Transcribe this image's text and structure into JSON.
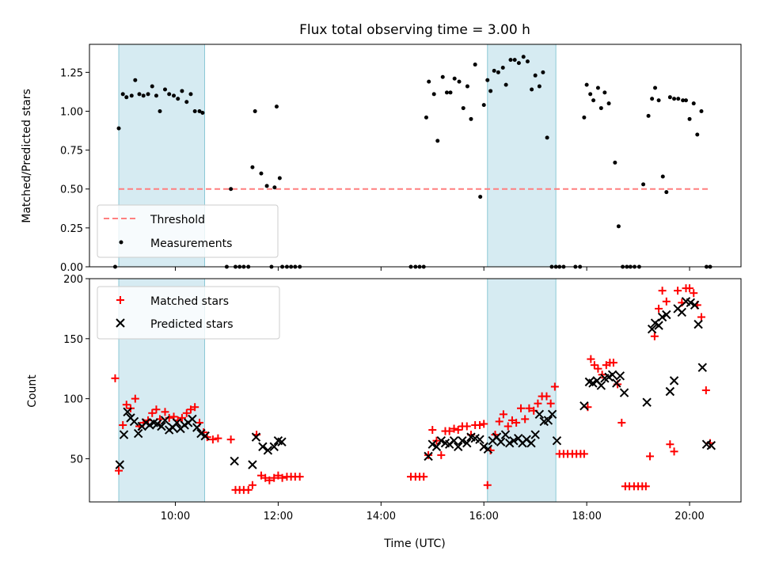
{
  "chart_data": [
    {
      "type": "scatter",
      "title": "Flux total observing time = 3.00 h",
      "ylabel": "Matched/Predicted stars",
      "xlabel": "",
      "xlim": [
        8.33,
        21.0
      ],
      "ylim": [
        0,
        1.43
      ],
      "yticks": [
        "0.00",
        "0.25",
        "0.50",
        "0.75",
        "1.00",
        "1.25"
      ],
      "ytick_values": [
        0,
        0.25,
        0.5,
        0.75,
        1.0,
        1.25
      ],
      "xtick_values": [
        10,
        12,
        14,
        16,
        18,
        20
      ],
      "grid": false,
      "legend_placement": "lower-left",
      "legend": [
        "Threshold",
        "Measurements"
      ],
      "threshold": {
        "name": "Threshold",
        "y": 0.5,
        "x": [
          8.9,
          20.4
        ],
        "color": "#ff7f7f"
      },
      "spans": [
        [
          8.9,
          10.57
        ],
        [
          16.07,
          17.4
        ]
      ],
      "span_color": "#add8e6",
      "series": [
        {
          "name": "Measurements",
          "color": "#000000",
          "x": [
            8.83,
            8.9,
            8.98,
            9.05,
            9.15,
            9.22,
            9.3,
            9.38,
            9.47,
            9.55,
            9.63,
            9.7,
            9.8,
            9.88,
            9.97,
            10.05,
            10.13,
            10.22,
            10.3,
            10.38,
            10.47,
            10.53,
            11.0,
            11.08,
            11.17,
            11.25,
            11.33,
            11.42,
            11.5,
            11.55,
            11.67,
            11.78,
            11.87,
            11.93,
            11.97,
            12.03,
            12.08,
            12.17,
            12.25,
            12.33,
            12.42,
            14.58,
            14.67,
            14.75,
            14.83,
            14.88,
            14.93,
            15.03,
            15.1,
            15.2,
            15.28,
            15.35,
            15.43,
            15.52,
            15.6,
            15.68,
            15.75,
            15.83,
            15.93,
            16.0,
            16.07,
            16.13,
            16.2,
            16.28,
            16.37,
            16.43,
            16.52,
            16.6,
            16.68,
            16.77,
            16.85,
            16.93,
            17.0,
            17.08,
            17.15,
            17.23,
            17.32,
            17.4,
            17.47,
            17.55,
            17.78,
            17.87,
            17.95,
            18.0,
            18.07,
            18.13,
            18.22,
            18.28,
            18.35,
            18.43,
            18.55,
            18.62,
            18.7,
            18.78,
            18.85,
            18.93,
            19.02,
            19.1,
            19.2,
            19.27,
            19.33,
            19.4,
            19.48,
            19.55,
            19.62,
            19.7,
            19.78,
            19.87,
            19.93,
            20.0,
            20.08,
            20.15,
            20.23,
            20.33,
            20.4
          ],
          "y": [
            0.0,
            0.89,
            1.11,
            1.09,
            1.1,
            1.2,
            1.11,
            1.1,
            1.11,
            1.16,
            1.1,
            1.0,
            1.14,
            1.11,
            1.1,
            1.08,
            1.13,
            1.06,
            1.11,
            1.0,
            1.0,
            0.99,
            0.0,
            0.5,
            0.0,
            0.0,
            0.0,
            0.0,
            0.64,
            1.0,
            0.6,
            0.52,
            0.0,
            0.51,
            1.03,
            0.57,
            0.0,
            0.0,
            0.0,
            0.0,
            0.0,
            0.0,
            0.0,
            0.0,
            0.0,
            0.96,
            1.19,
            1.11,
            0.81,
            1.22,
            1.12,
            1.12,
            1.21,
            1.19,
            1.02,
            1.16,
            0.95,
            1.3,
            0.45,
            1.04,
            1.2,
            1.13,
            1.26,
            1.25,
            1.28,
            1.17,
            1.33,
            1.33,
            1.31,
            1.35,
            1.32,
            1.14,
            1.23,
            1.16,
            1.25,
            0.83,
            0.0,
            0.0,
            0.0,
            0.0,
            0.0,
            0.0,
            0.96,
            1.17,
            1.11,
            1.07,
            1.15,
            1.02,
            1.12,
            1.05,
            0.67,
            0.26,
            0.0,
            0.0,
            0.0,
            0.0,
            0.0,
            0.53,
            0.97,
            1.08,
            1.15,
            1.07,
            0.58,
            0.48,
            1.09,
            1.08,
            1.08,
            1.07,
            1.07,
            0.95,
            1.05,
            0.85,
            1.0,
            0.0,
            0.0
          ],
          "marker": "point"
        }
      ]
    },
    {
      "type": "scatter",
      "title": "",
      "xlabel": "Time (UTC)",
      "ylabel": "Count",
      "xlim": [
        8.33,
        21.0
      ],
      "ylim": [
        14,
        200
      ],
      "yticks": [
        "50",
        "100",
        "150",
        "200"
      ],
      "ytick_values": [
        50,
        100,
        150,
        200
      ],
      "xticks": [
        "10:00",
        "12:00",
        "14:00",
        "16:00",
        "18:00",
        "20:00"
      ],
      "xtick_values": [
        10,
        12,
        14,
        16,
        18,
        20
      ],
      "grid": false,
      "legend_placement": "top-left",
      "legend": [
        "Matched stars",
        "Predicted stars"
      ],
      "spans": [
        [
          8.9,
          10.57
        ],
        [
          16.07,
          17.4
        ]
      ],
      "span_color": "#add8e6",
      "series": [
        {
          "name": "Matched stars",
          "color": "#ff0000",
          "marker": "plus",
          "x": [
            8.83,
            8.9,
            8.98,
            9.05,
            9.13,
            9.22,
            9.3,
            9.38,
            9.47,
            9.55,
            9.63,
            9.7,
            9.8,
            9.88,
            9.97,
            10.05,
            10.13,
            10.22,
            10.3,
            10.38,
            10.47,
            10.55,
            10.62,
            10.73,
            10.83,
            11.08,
            11.17,
            11.25,
            11.33,
            11.42,
            11.5,
            11.58,
            11.67,
            11.75,
            11.83,
            11.92,
            12.0,
            12.08,
            12.17,
            12.25,
            12.33,
            12.42,
            14.58,
            14.67,
            14.75,
            14.83,
            14.92,
            15.0,
            15.08,
            15.17,
            15.25,
            15.33,
            15.42,
            15.5,
            15.58,
            15.67,
            15.75,
            15.83,
            15.92,
            16.0,
            16.07,
            16.13,
            16.22,
            16.3,
            16.38,
            16.47,
            16.55,
            16.63,
            16.72,
            16.8,
            16.88,
            16.97,
            17.05,
            17.13,
            17.22,
            17.3,
            17.38,
            17.47,
            17.55,
            17.63,
            17.72,
            17.8,
            17.88,
            17.95,
            18.02,
            18.08,
            18.15,
            18.22,
            18.3,
            18.38,
            18.45,
            18.52,
            18.6,
            18.68,
            18.75,
            18.83,
            18.92,
            19.0,
            19.08,
            19.15,
            19.23,
            19.32,
            19.4,
            19.47,
            19.55,
            19.62,
            19.7,
            19.77,
            19.85,
            19.93,
            20.0,
            20.08,
            20.15,
            20.23,
            20.32,
            20.4
          ],
          "y": [
            117,
            40,
            78,
            95,
            92,
            100,
            77,
            80,
            82,
            88,
            91,
            83,
            89,
            84,
            85,
            82,
            84,
            88,
            91,
            93,
            80,
            72,
            68,
            66,
            67,
            66,
            24,
            24,
            24,
            24,
            28,
            70,
            36,
            34,
            32,
            34,
            36,
            34,
            35,
            35,
            35,
            35,
            35,
            35,
            35,
            35,
            53,
            74,
            65,
            53,
            73,
            73,
            75,
            74,
            77,
            77,
            70,
            78,
            78,
            79,
            28,
            57,
            70,
            81,
            87,
            77,
            82,
            80,
            92,
            83,
            92,
            90,
            96,
            102,
            102,
            96,
            110,
            54,
            54,
            54,
            54,
            54,
            54,
            54,
            93,
            133,
            128,
            125,
            120,
            128,
            130,
            130,
            112,
            80,
            27,
            27,
            27,
            27,
            27,
            27,
            52,
            152,
            175,
            190,
            181,
            62,
            56,
            190,
            180,
            192,
            192,
            188,
            178,
            168,
            107,
            63
          ],
          "legend_x": [
            8.83,
            8.9,
            8.98,
            9.05,
            9.13,
            9.22,
            9.3
          ]
        },
        {
          "name": "Predicted stars",
          "color": "#000000",
          "marker": "x",
          "x": [
            8.92,
            9.0,
            9.07,
            9.13,
            9.2,
            9.28,
            9.35,
            9.43,
            9.5,
            9.58,
            9.65,
            9.73,
            9.8,
            9.88,
            9.95,
            10.03,
            10.1,
            10.18,
            10.25,
            10.33,
            10.42,
            10.5,
            10.58,
            11.15,
            11.5,
            11.57,
            11.7,
            11.8,
            11.92,
            12.0,
            12.07,
            14.92,
            15.0,
            15.08,
            15.17,
            15.25,
            15.33,
            15.42,
            15.5,
            15.58,
            15.67,
            15.75,
            15.83,
            15.92,
            16.0,
            16.08,
            16.17,
            16.25,
            16.33,
            16.42,
            16.5,
            16.58,
            16.67,
            16.75,
            16.83,
            16.92,
            17.0,
            17.08,
            17.17,
            17.25,
            17.33,
            17.42,
            17.95,
            18.05,
            18.12,
            18.2,
            18.28,
            18.35,
            18.43,
            18.5,
            18.58,
            18.65,
            18.73,
            19.17,
            19.27,
            19.33,
            19.4,
            19.47,
            19.55,
            19.62,
            19.7,
            19.77,
            19.85,
            19.93,
            20.02,
            20.1,
            20.17,
            20.25,
            20.33,
            20.42
          ],
          "y": [
            45,
            70,
            89,
            84,
            81,
            71,
            77,
            80,
            78,
            80,
            79,
            77,
            82,
            74,
            76,
            80,
            75,
            78,
            80,
            83,
            76,
            71,
            69,
            48,
            45,
            68,
            60,
            57,
            60,
            65,
            64,
            52,
            62,
            60,
            65,
            63,
            62,
            65,
            60,
            65,
            63,
            68,
            67,
            66,
            60,
            58,
            65,
            68,
            64,
            70,
            63,
            65,
            67,
            63,
            66,
            63,
            70,
            87,
            81,
            82,
            87,
            65,
            94,
            114,
            113,
            115,
            111,
            117,
            118,
            120,
            113,
            119,
            105,
            97,
            158,
            163,
            161,
            168,
            170,
            106,
            115,
            175,
            172,
            181,
            180,
            178,
            162,
            126,
            62,
            61
          ]
        }
      ]
    }
  ]
}
